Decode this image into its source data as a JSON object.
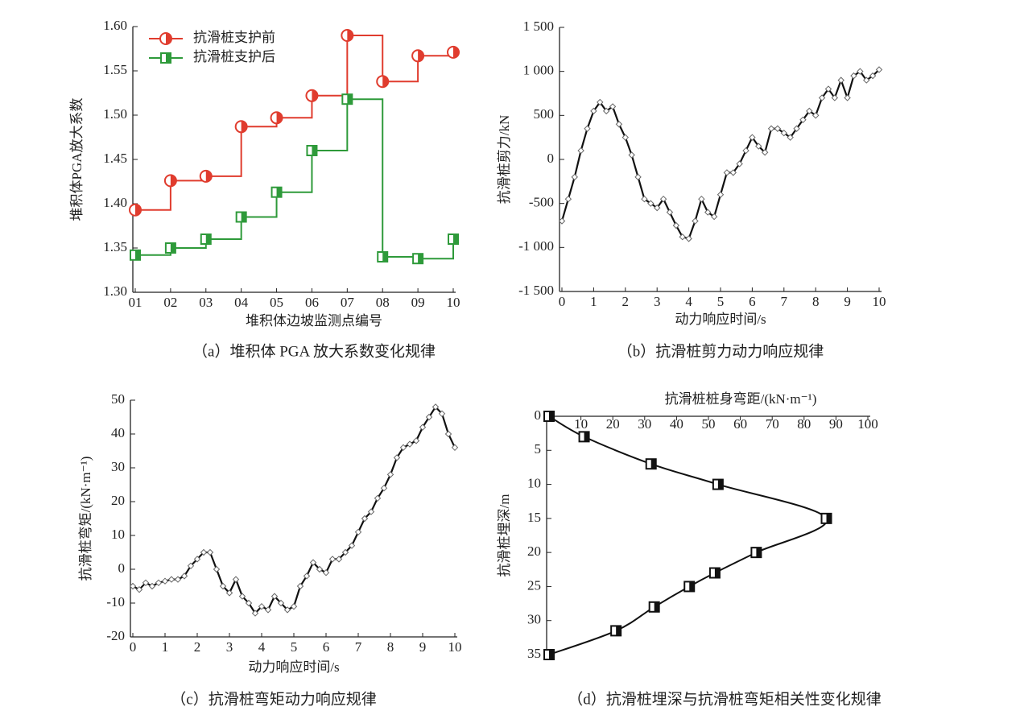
{
  "chart_data": [
    {
      "type": "step",
      "categories": [
        "01",
        "02",
        "03",
        "04",
        "05",
        "06",
        "07",
        "08",
        "09",
        "10"
      ],
      "series": [
        {
          "name": "抗滑桩支护前",
          "color": "#e03c2e",
          "marker": "half-circle",
          "values": [
            1.393,
            1.426,
            1.431,
            1.487,
            1.497,
            1.522,
            1.59,
            1.538,
            1.567,
            1.571
          ]
        },
        {
          "name": "抗滑桩支护后",
          "color": "#2e9a3a",
          "marker": "half-square",
          "values": [
            1.342,
            1.35,
            1.36,
            1.385,
            1.413,
            1.46,
            1.518,
            1.34,
            1.338,
            1.36
          ]
        }
      ],
      "ylim": [
        1.3,
        1.6
      ],
      "yticks": [
        {
          "value": 1.3,
          "label": "1.30"
        },
        1.35,
        {
          "value": 1.4,
          "label": "1.40"
        },
        1.45,
        {
          "value": 1.5,
          "label": "1.50"
        },
        1.55,
        {
          "value": 1.6,
          "label": "1.60"
        }
      ],
      "xlabel": "堆积体边坡监测点编号",
      "ylabel": "堆积体PGA放大系数",
      "caption": "（a）堆积体 PGA 放大系数变化规律",
      "legend": "upper left"
    },
    {
      "type": "line",
      "x": [
        0,
        0.2,
        0.4,
        0.6,
        0.8,
        1,
        1.2,
        1.4,
        1.6,
        1.8,
        2,
        2.2,
        2.4,
        2.6,
        2.8,
        3,
        3.2,
        3.4,
        3.6,
        3.8,
        4,
        4.2,
        4.4,
        4.6,
        4.8,
        5,
        5.2,
        5.4,
        5.6,
        5.8,
        6,
        6.2,
        6.4,
        6.6,
        6.8,
        7,
        7.2,
        7.4,
        7.6,
        7.8,
        8,
        8.2,
        8.4,
        8.6,
        8.8,
        9,
        9.2,
        9.4,
        9.6,
        9.8,
        10
      ],
      "series": [
        {
          "color": "#111111",
          "marker": "diamond",
          "values": [
            -700,
            -450,
            -200,
            100,
            350,
            550,
            650,
            550,
            600,
            400,
            250,
            50,
            -200,
            -450,
            -500,
            -550,
            -450,
            -600,
            -750,
            -880,
            -900,
            -700,
            -450,
            -600,
            -650,
            -400,
            -150,
            -150,
            -50,
            100,
            250,
            150,
            80,
            350,
            350,
            300,
            250,
            350,
            450,
            550,
            500,
            700,
            800,
            700,
            900,
            700,
            950,
            1000,
            900,
            950,
            1020
          ]
        }
      ],
      "xlim": [
        0,
        10
      ],
      "xticks": [
        0,
        1,
        2,
        3,
        4,
        5,
        6,
        7,
        8,
        9,
        10
      ],
      "ylim": [
        -1500,
        1500
      ],
      "yticks": [
        {
          "value": -1500,
          "label": "-1 500"
        },
        {
          "value": -1000,
          "label": "-1 000"
        },
        -500,
        0,
        500,
        {
          "value": 1000,
          "label": "1 000"
        },
        {
          "value": 1500,
          "label": "1 500"
        }
      ],
      "xlabel": "动力响应时间/s",
      "ylabel": "抗滑桩剪力/kN",
      "caption": "（b）抗滑桩剪力动力响应规律"
    },
    {
      "type": "line",
      "x": [
        0,
        0.2,
        0.4,
        0.6,
        0.8,
        1,
        1.2,
        1.4,
        1.6,
        1.8,
        2,
        2.2,
        2.4,
        2.6,
        2.8,
        3,
        3.2,
        3.4,
        3.6,
        3.8,
        4,
        4.2,
        4.4,
        4.6,
        4.8,
        5,
        5.2,
        5.4,
        5.6,
        5.8,
        6,
        6.2,
        6.4,
        6.6,
        6.8,
        7,
        7.2,
        7.4,
        7.6,
        7.8,
        8,
        8.2,
        8.4,
        8.6,
        8.8,
        9,
        9.2,
        9.4,
        9.6,
        9.8,
        10
      ],
      "series": [
        {
          "color": "#111111",
          "marker": "diamond",
          "values": [
            -5,
            -6,
            -4,
            -5,
            -4,
            -3.5,
            -3,
            -3,
            -2,
            1,
            3,
            5,
            5,
            0,
            -5,
            -7,
            -3,
            -8,
            -10,
            -13,
            -11,
            -12,
            -8,
            -10,
            -12,
            -11,
            -5,
            -2,
            2,
            0,
            -1,
            3,
            3,
            5,
            7,
            11,
            15,
            17,
            21,
            24,
            28,
            33,
            36,
            37,
            38,
            42,
            45,
            48,
            46,
            40,
            36
          ]
        }
      ],
      "xlim": [
        0,
        10
      ],
      "xticks": [
        0,
        1,
        2,
        3,
        4,
        5,
        6,
        7,
        8,
        9,
        10
      ],
      "ylim": [
        -20,
        50
      ],
      "yticks": [
        -20,
        -10,
        0,
        10,
        20,
        30,
        40,
        50
      ],
      "xlabel": "动力响应时间/s",
      "ylabel": "抗滑桩弯矩/(kN·m⁻¹)",
      "caption": "（c）抗滑桩弯矩动力响应规律"
    },
    {
      "type": "profile",
      "x": [
        0,
        11,
        32,
        53,
        87,
        65,
        52,
        44,
        33,
        21,
        0
      ],
      "series": [
        {
          "color": "#111111",
          "marker": "half-square",
          "values": [
            0,
            3,
            7,
            10,
            15,
            20,
            23,
            25,
            28,
            31.5,
            35
          ]
        }
      ],
      "xlim": [
        0,
        100
      ],
      "xticks": [
        10,
        20,
        30,
        40,
        50,
        60,
        70,
        80,
        90,
        100
      ],
      "ylim": [
        0,
        35
      ],
      "yticks": [
        0,
        5,
        10,
        15,
        20,
        25,
        30,
        35
      ],
      "y_inverted": true,
      "x_axis_position": "top",
      "xlabel": "抗滑桩桩身弯距/(kN·m⁻¹)",
      "ylabel": "抗滑桩埋深/m",
      "caption": "（d）抗滑桩埋深与抗滑桩弯矩相关性变化规律"
    }
  ]
}
